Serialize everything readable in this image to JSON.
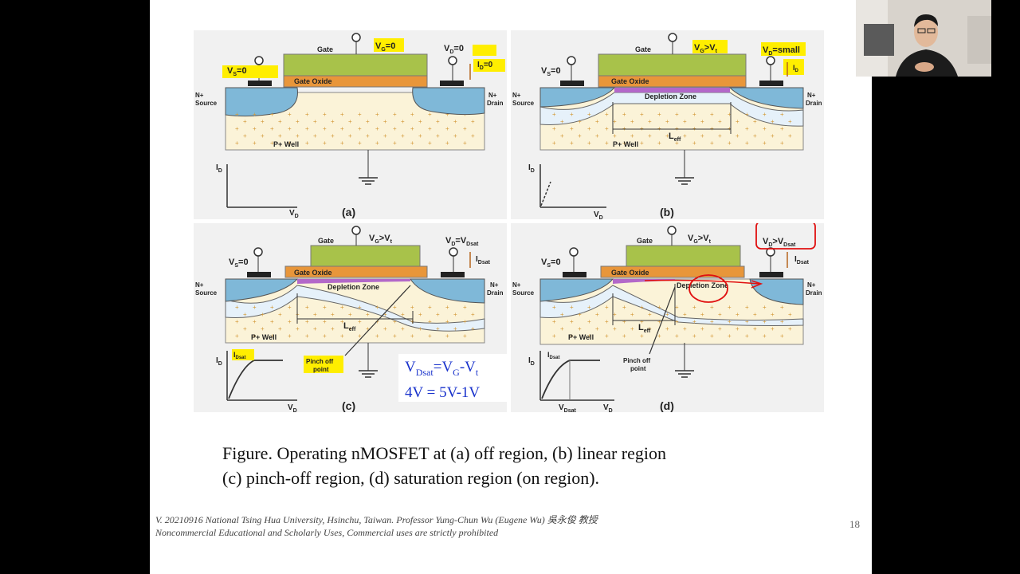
{
  "caption": {
    "line1": "Figure. Operating nMOSFET at (a) off region, (b) linear region",
    "line2": "(c) pinch-off region, (d) saturation region (on region)."
  },
  "footer": {
    "line1": "V. 20210916 National Tsing Hua University, Hsinchu, Taiwan. Professor Yung-Chun Wu (Eugene Wu) 吳永俊 教授",
    "line2": "Noncommercial Educational and Scholarly Uses, Commercial uses are strictly prohibited"
  },
  "page_number": "18",
  "formula": {
    "line1": {
      "v": "V",
      "sub1": "Dsat",
      "eq": "=V",
      "sub2": "G",
      "rest": "-V",
      "sub3": "t"
    },
    "line2": "4V  = 5V-1V"
  },
  "diagram": {
    "common": {
      "gate": "Gate",
      "gate_oxide": "Gate Oxide",
      "n_source_1": "N+",
      "n_source_2": "Source",
      "n_drain_1": "N+",
      "n_drain_2": "Drain",
      "p_well": "P+ Well",
      "depletion_zone": "Depletion Zone",
      "leff": "L",
      "leff_sub": "eff",
      "vs": "V",
      "vs_sub": "S",
      "vs_val": "=0",
      "id_axis": "I",
      "id_sub": "D",
      "vd_axis": "V",
      "vd_sub": "D",
      "pinch_1": "Pinch off",
      "pinch_2": "point"
    },
    "panels": [
      {
        "label": "(a)",
        "vg": "=0",
        "vd": "=0",
        "id": "=0"
      },
      {
        "label": "(b)",
        "vg": ">V",
        "vd": "=small"
      },
      {
        "label": "(c)",
        "vg": ">V",
        "vd": "=V",
        "vd_sub2": "Dsat",
        "idsat": "Dsat"
      },
      {
        "label": "(d)",
        "vg": ">V",
        "vd": ">V",
        "vd_sub2": "Dsat",
        "idsat": "Dsat",
        "vdsat_axis": "Dsat"
      }
    ],
    "colors": {
      "gate": "#a8c24a",
      "oxide": "#e8963a",
      "nplus": "#7fb8d8",
      "pwell": "#fbf3d8",
      "depletion": "#e6f1fa",
      "highlight": "#ffee00",
      "annotation": "#e01010",
      "label_brown": "#b5651d"
    }
  }
}
